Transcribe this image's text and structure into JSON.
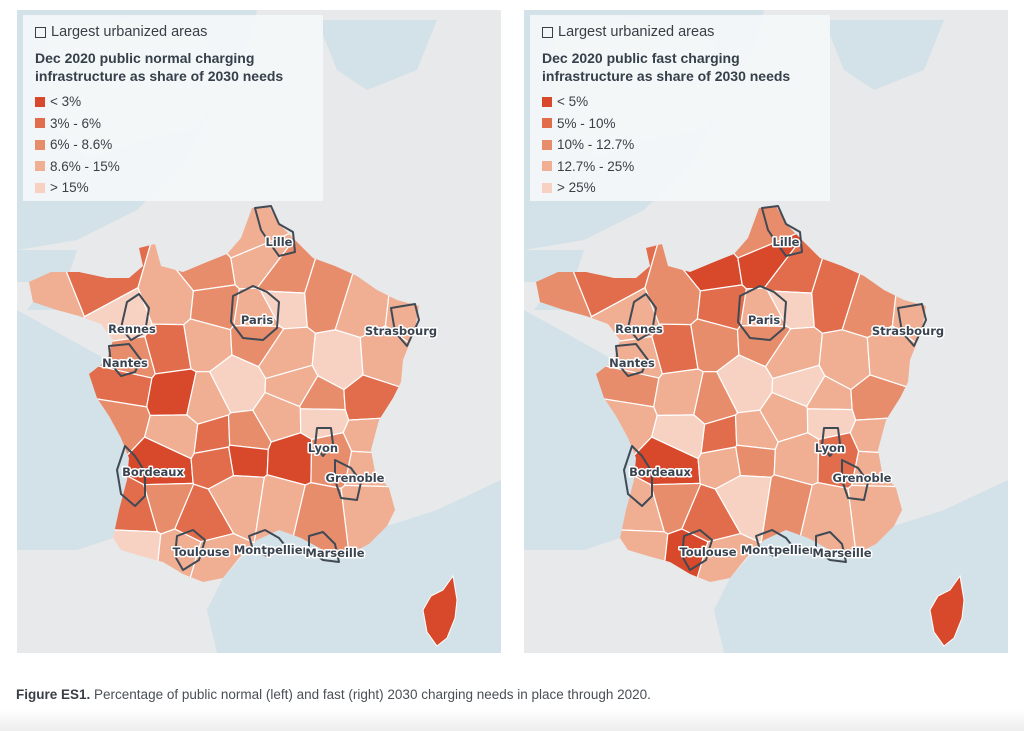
{
  "figure": {
    "caption_label": "Figure ES1.",
    "caption_text": " Percentage of public normal (left) and fast (right) 2030 charging needs in place through 2020."
  },
  "colors": {
    "sea": "#d3e1e8",
    "land_other": "#e8e9ea",
    "border_other": "#c9cccf",
    "urban_outline": "#404a55",
    "region_border": "#ffffff",
    "class_1": "#d8482a",
    "class_2": "#e26d4c",
    "class_3": "#e88d6c",
    "class_4": "#f0ae93",
    "class_5": "#f7d2c2"
  },
  "cities": [
    "Lille",
    "Paris",
    "Rennes",
    "Nantes",
    "Strasbourg",
    "Lyon",
    "Bordeaux",
    "Grenoble",
    "Toulouse",
    "Montpellier",
    "Marseille"
  ],
  "maps": [
    {
      "id": "normal",
      "legend": {
        "urban_label": "Largest urbanized areas",
        "title_line1": "Dec 2020 public normal charging",
        "title_line2": "infrastructure as share of 2030 needs",
        "items": [
          {
            "label": "< 3%",
            "color": "#d8482a"
          },
          {
            "label": "3% - 6%",
            "color": "#e26d4c"
          },
          {
            "label": "6% - 8.6%",
            "color": "#e88d6c"
          },
          {
            "label": "8.6% - 15%",
            "color": "#f0ae93"
          },
          {
            "label": "> 15%",
            "color": "#f7d2c2"
          }
        ]
      },
      "region_classes": [
        4,
        2,
        3,
        4,
        3,
        4,
        5,
        4,
        3,
        4,
        5,
        3,
        4,
        4,
        3,
        2,
        4,
        3,
        4,
        5,
        4,
        2,
        1,
        4,
        5,
        4,
        3,
        2,
        3,
        4,
        2,
        3,
        4,
        5,
        4,
        1,
        2,
        1,
        1,
        3,
        4,
        2,
        3,
        2,
        4,
        4,
        3,
        4,
        5,
        4,
        4,
        3,
        4,
        5,
        5,
        3,
        4,
        4,
        3,
        4,
        3,
        4,
        5,
        4,
        4,
        3,
        3,
        2,
        1,
        1,
        2,
        4,
        2,
        3,
        3,
        4,
        4,
        4,
        5,
        4,
        1
      ]
    },
    {
      "id": "fast",
      "legend": {
        "urban_label": "Largest urbanized areas",
        "title_line1": "Dec 2020 public fast charging",
        "title_line2": "infrastructure as share of 2030 needs",
        "items": [
          {
            "label": "< 5%",
            "color": "#d8482a"
          },
          {
            "label": "5% - 10%",
            "color": "#e26d4c"
          },
          {
            "label": "10% - 12.7%",
            "color": "#e88d6c"
          },
          {
            "label": "12.7% - 25%",
            "color": "#f0ae93"
          },
          {
            "label": "> 25%",
            "color": "#f7d2c2"
          }
        ]
      },
      "region_classes": [
        3,
        2,
        1,
        1,
        2,
        3,
        4,
        3,
        2,
        4,
        5,
        2,
        3,
        4,
        4,
        2,
        3,
        3,
        4,
        4,
        4,
        3,
        4,
        3,
        5,
        5,
        4,
        3,
        4,
        5,
        2,
        4,
        4,
        5,
        4,
        1,
        4,
        3,
        4,
        2,
        4,
        4,
        3,
        2,
        5,
        3,
        4,
        4,
        4,
        1,
        4,
        4,
        5,
        5,
        5,
        4,
        4,
        4,
        3,
        4,
        2,
        4,
        4,
        3,
        5,
        2,
        2,
        4,
        4,
        4,
        3,
        4,
        1,
        1,
        1,
        2,
        4,
        5,
        4,
        3,
        1
      ]
    }
  ]
}
